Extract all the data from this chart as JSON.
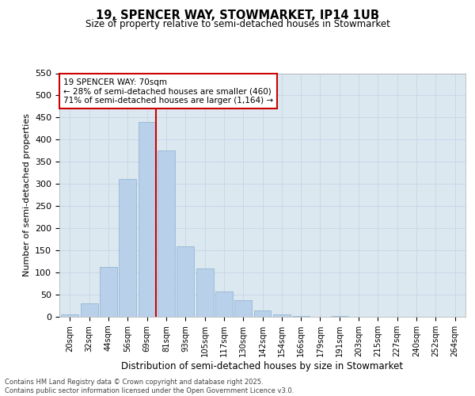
{
  "title": "19, SPENCER WAY, STOWMARKET, IP14 1UB",
  "subtitle": "Size of property relative to semi-detached houses in Stowmarket",
  "xlabel": "Distribution of semi-detached houses by size in Stowmarket",
  "ylabel": "Number of semi-detached properties",
  "bar_labels": [
    "20sqm",
    "32sqm",
    "44sqm",
    "56sqm",
    "69sqm",
    "81sqm",
    "93sqm",
    "105sqm",
    "117sqm",
    "130sqm",
    "142sqm",
    "154sqm",
    "166sqm",
    "179sqm",
    "191sqm",
    "203sqm",
    "215sqm",
    "227sqm",
    "240sqm",
    "252sqm",
    "264sqm"
  ],
  "bar_values": [
    5,
    30,
    113,
    312,
    440,
    375,
    160,
    110,
    57,
    37,
    15,
    5,
    2,
    0,
    1,
    0,
    0,
    0,
    0,
    0,
    0
  ],
  "bar_color": "#b8d0ea",
  "bar_edge_color": "#8ab0d0",
  "grid_color": "#c8d8e8",
  "background_color": "#dce8f0",
  "vline_color": "#cc0000",
  "annotation_text": "19 SPENCER WAY: 70sqm\n← 28% of semi-detached houses are smaller (460)\n71% of semi-detached houses are larger (1,164) →",
  "annotation_box_color": "#cc0000",
  "ylim": [
    0,
    550
  ],
  "yticks": [
    0,
    50,
    100,
    150,
    200,
    250,
    300,
    350,
    400,
    450,
    500,
    550
  ],
  "footer_line1": "Contains HM Land Registry data © Crown copyright and database right 2025.",
  "footer_line2": "Contains public sector information licensed under the Open Government Licence v3.0."
}
